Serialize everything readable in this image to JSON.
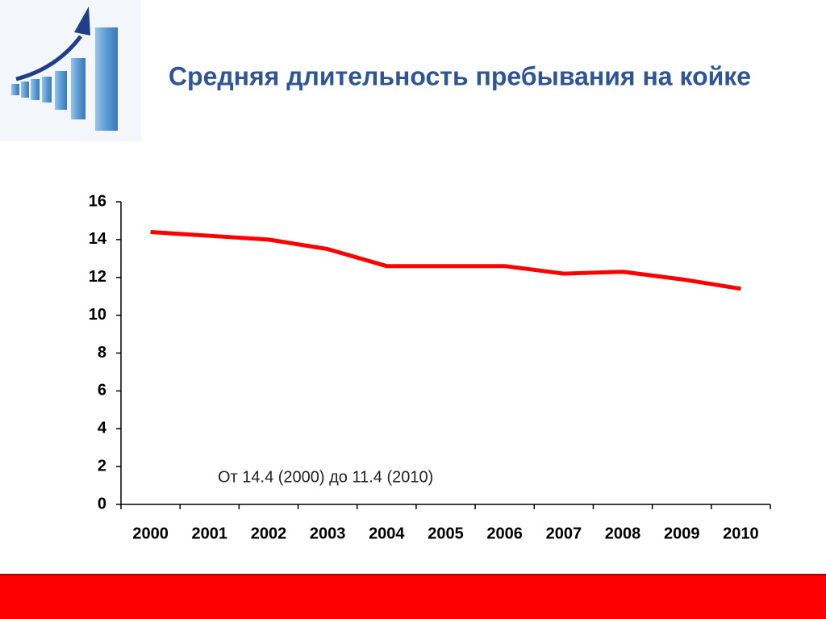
{
  "chart_data": {
    "type": "line",
    "title": "Средняя длительность пребывания на койке",
    "categories": [
      "2000",
      "2001",
      "2002",
      "2003",
      "2004",
      "2005",
      "2006",
      "2007",
      "2008",
      "2009",
      "2010"
    ],
    "series": [
      {
        "color": "#ff0000",
        "values": [
          14.4,
          14.2,
          14.0,
          13.5,
          12.6,
          12.6,
          12.6,
          12.2,
          12.3,
          11.9,
          11.4
        ]
      }
    ],
    "ylim": [
      0,
      16
    ],
    "yticks": [
      0,
      2,
      4,
      6,
      8,
      10,
      12,
      14,
      16
    ],
    "annotation": "От 14.4 (2000)  до 11.4 (2010)"
  }
}
